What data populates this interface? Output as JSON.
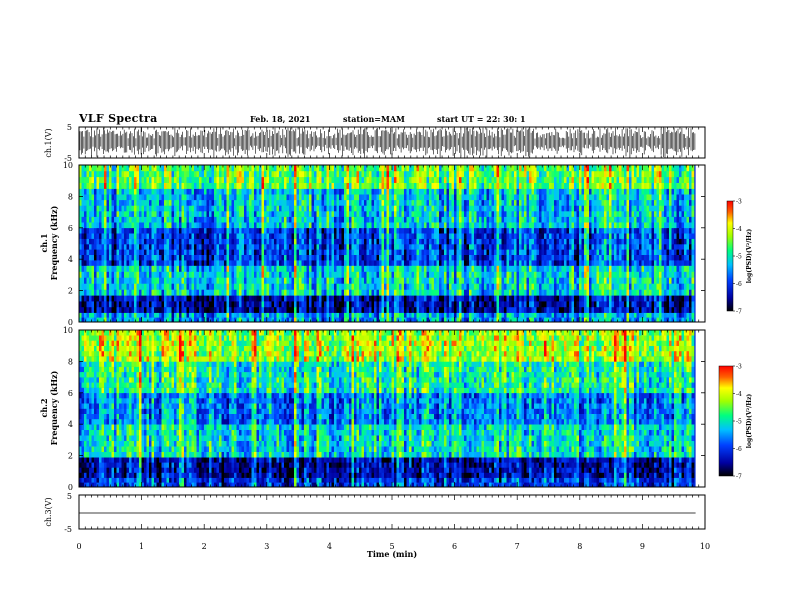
{
  "header": {
    "title": "VLF Spectra",
    "date": "Feb. 18, 2021",
    "station": "station=MAM",
    "start": "start  UT  =   22: 30: 1"
  },
  "chart_data": [
    {
      "type": "line",
      "panel": "ch1-waveform",
      "ylabel": "ch.1(V)",
      "ylim": [
        -5,
        5
      ],
      "yticks": [
        "5",
        "-5"
      ],
      "description_values": "dense sferic impulses across full window"
    },
    {
      "type": "heatmap",
      "panel": "ch1-spectrogram",
      "ylabel": "ch.1\nFrequency (kHz)",
      "ylabel_top": "ch.1",
      "ylabel_bottom": "Frequency  (kHz)",
      "ylim": [
        0,
        10
      ],
      "yticks": [
        "0",
        "2",
        "4",
        "6",
        "8",
        "10"
      ],
      "xlim": [
        0,
        9.85
      ],
      "colorbar": {
        "label": "log(PSD)(V²/Hz)",
        "range": [
          -7,
          -3
        ],
        "ticks": [
          "-3",
          "-4",
          "-5",
          "-6",
          "-7"
        ]
      },
      "bands": [
        {
          "f0": 0.0,
          "f1": 0.6,
          "level": -5.5
        },
        {
          "f0": 0.6,
          "f1": 1.7,
          "level": -6.5
        },
        {
          "f0": 1.7,
          "f1": 3.6,
          "level": -5.2
        },
        {
          "f0": 3.6,
          "f1": 6.0,
          "level": -6.0
        },
        {
          "f0": 6.0,
          "f1": 8.5,
          "level": -5.3
        },
        {
          "f0": 8.5,
          "f1": 10.0,
          "level": -4.6
        }
      ]
    },
    {
      "type": "heatmap",
      "panel": "ch2-spectrogram",
      "ylabel_top": "ch.2",
      "ylabel_bottom": "Frequency  (kHz)",
      "ylim": [
        0,
        10
      ],
      "yticks": [
        "0",
        "2",
        "4",
        "6",
        "8",
        "10"
      ],
      "xlim": [
        0,
        9.85
      ],
      "colorbar": {
        "label": "log(PSD)(V²/Hz)",
        "range": [
          -7,
          -3
        ],
        "ticks": [
          "-3",
          "-4",
          "-5",
          "-6",
          "-7"
        ]
      },
      "bands": [
        {
          "f0": 0.0,
          "f1": 0.6,
          "level": -6.0
        },
        {
          "f0": 0.6,
          "f1": 1.9,
          "level": -6.4
        },
        {
          "f0": 1.9,
          "f1": 4.0,
          "level": -5.1
        },
        {
          "f0": 4.0,
          "f1": 6.0,
          "level": -5.6
        },
        {
          "f0": 6.0,
          "f1": 8.0,
          "level": -4.9
        },
        {
          "f0": 8.0,
          "f1": 10.0,
          "level": -4.2
        }
      ]
    },
    {
      "type": "line",
      "panel": "ch3-waveform",
      "ylabel": "ch.3(V)",
      "ylim": [
        -5,
        5
      ],
      "yticks": [
        "5",
        "-5"
      ],
      "x": [
        0,
        9.85
      ],
      "values": [
        -1.3,
        -1.3
      ]
    }
  ],
  "xaxis": {
    "label": "Time  (min)",
    "xlim": [
      0,
      10
    ],
    "ticks": [
      "0",
      "1",
      "2",
      "3",
      "4",
      "5",
      "6",
      "7",
      "8",
      "9",
      "10"
    ]
  }
}
